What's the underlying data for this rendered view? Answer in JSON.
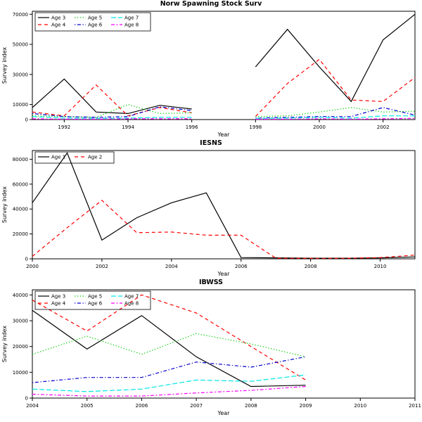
{
  "chart_data": [
    {
      "type": "line",
      "title": "Norw Spawning Stock Surv",
      "xlabel": "Year",
      "ylabel": "Survey index",
      "xlim": [
        1991,
        2003
      ],
      "ylim": [
        0,
        72000
      ],
      "x_ticks": [
        1992,
        1994,
        1996,
        1998,
        2000,
        2002
      ],
      "y_ticks": [
        0,
        10000,
        30000,
        50000,
        70000
      ],
      "x": [
        1991,
        1992,
        1993,
        1994,
        1995,
        1996,
        1997,
        1998,
        1999,
        2000,
        2001,
        2002,
        2003
      ],
      "legend": {
        "position": "top-left",
        "columns": 3
      },
      "series": [
        {
          "name": "Age 3",
          "color": "#000000",
          "line_style": "solid",
          "values": [
            8000,
            27000,
            5000,
            4000,
            9500,
            7000,
            null,
            35000,
            60000,
            35000,
            12000,
            53000,
            70000
          ]
        },
        {
          "name": "Age 4",
          "color": "#FF0000",
          "line_style": "dashed",
          "values": [
            5000,
            2500,
            23000,
            2500,
            8000,
            4500,
            null,
            2000,
            24000,
            40000,
            13000,
            12000,
            28000
          ]
        },
        {
          "name": "Age 5",
          "color": "#00CD00",
          "line_style": "dotted",
          "values": [
            2500,
            2000,
            1500,
            10000,
            4000,
            4500,
            null,
            2000,
            2500,
            5000,
            8000,
            5000,
            5500
          ]
        },
        {
          "name": "Age 6",
          "color": "#0000CD",
          "line_style": "dashdot",
          "values": [
            4000,
            2000,
            1500,
            2000,
            8500,
            6000,
            null,
            1000,
            1500,
            2000,
            2000,
            8000,
            3000
          ]
        },
        {
          "name": "Age 7",
          "color": "#00E6E6",
          "line_style": "longdash",
          "values": [
            2000,
            1000,
            800,
            1000,
            1500,
            1500,
            null,
            800,
            1000,
            1500,
            1000,
            2500,
            2500
          ]
        },
        {
          "name": "Age 8",
          "color": "#FF00FF",
          "line_style": "twodash",
          "values": [
            500,
            300,
            300,
            500,
            500,
            500,
            null,
            200,
            300,
            500,
            300,
            500,
            800
          ]
        }
      ]
    },
    {
      "type": "line",
      "title": "IESNS",
      "xlabel": "Year",
      "ylabel": "Survey index",
      "xlim": [
        2000,
        2011
      ],
      "ylim": [
        0,
        87000
      ],
      "x_ticks": [
        2000,
        2002,
        2004,
        2006,
        2008,
        2010
      ],
      "y_ticks": [
        0,
        20000,
        40000,
        60000,
        80000
      ],
      "x": [
        2000,
        2001,
        2002,
        2003,
        2004,
        2005,
        2006,
        2007,
        2008,
        2009,
        2010,
        2011
      ],
      "legend": {
        "position": "top-left",
        "columns": 2
      },
      "series": [
        {
          "name": "Age 1",
          "color": "#000000",
          "line_style": "solid",
          "values": [
            45000,
            85000,
            15000,
            33000,
            45000,
            53000,
            1000,
            800,
            500,
            500,
            800,
            1500
          ]
        },
        {
          "name": "Age 2",
          "color": "#FF0000",
          "line_style": "dashed",
          "values": [
            2000,
            25000,
            47000,
            21000,
            21500,
            19000,
            19000,
            500,
            400,
            400,
            1000,
            3000
          ]
        }
      ]
    },
    {
      "type": "line",
      "title": "IBWSS",
      "xlabel": "Year",
      "ylabel": "Survey index",
      "xlim": [
        2004,
        2011
      ],
      "ylim": [
        0,
        42000
      ],
      "x_ticks": [
        2004,
        2005,
        2006,
        2007,
        2008,
        2009,
        2010,
        2011
      ],
      "y_ticks": [
        0,
        10000,
        20000,
        30000,
        40000
      ],
      "x": [
        2004,
        2005,
        2006,
        2007,
        2008,
        2009
      ],
      "legend": {
        "position": "top-left",
        "columns": 3
      },
      "series": [
        {
          "name": "Age 3",
          "color": "#000000",
          "line_style": "solid",
          "values": [
            34000,
            19000,
            32000,
            16000,
            4500,
            5000
          ]
        },
        {
          "name": "Age 4",
          "color": "#FF0000",
          "line_style": "dashed",
          "values": [
            38000,
            26000,
            40000,
            33000,
            20000,
            7000
          ]
        },
        {
          "name": "Age 5",
          "color": "#00CD00",
          "line_style": "dotted",
          "values": [
            17000,
            24000,
            17000,
            25000,
            21000,
            16000
          ]
        },
        {
          "name": "Age 6",
          "color": "#0000CD",
          "line_style": "dashdot",
          "values": [
            6000,
            8000,
            8000,
            14000,
            12000,
            16000
          ]
        },
        {
          "name": "Age 7",
          "color": "#00E6E6",
          "line_style": "longdash",
          "values": [
            3500,
            2500,
            3500,
            7000,
            6500,
            9000
          ]
        },
        {
          "name": "Age 8",
          "color": "#FF00FF",
          "line_style": "twodash",
          "values": [
            1500,
            800,
            800,
            2000,
            3000,
            4500
          ]
        }
      ]
    }
  ]
}
